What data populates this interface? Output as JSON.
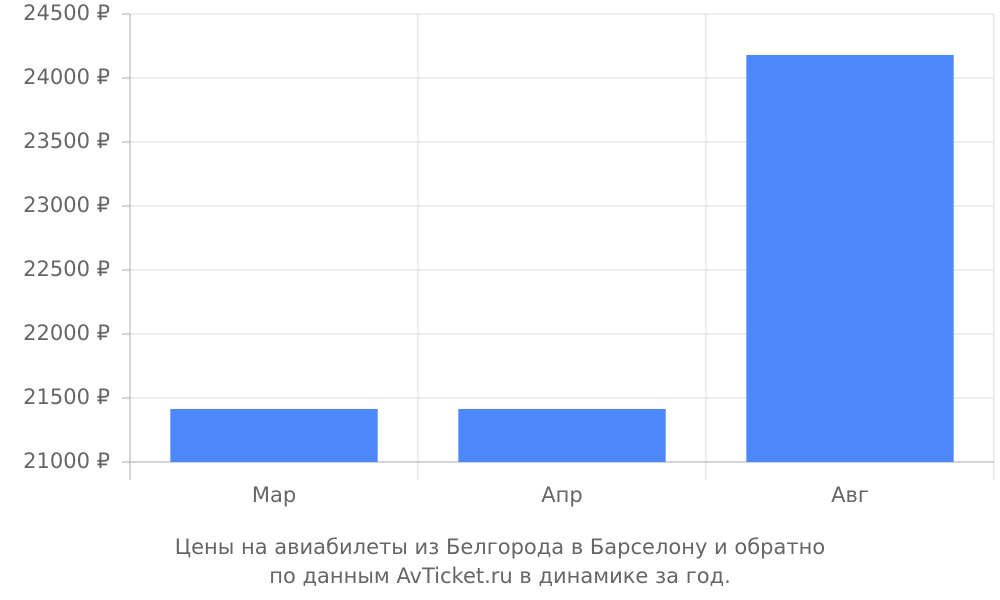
{
  "chart_data": {
    "type": "bar",
    "title": "Цены на авиабилеты из Белгорода в Барселону и обратно",
    "subtitle": "по данным AvTicket.ru в динамике за год.",
    "categories": [
      "Мар",
      "Апр",
      "Авг"
    ],
    "values": [
      21414,
      21414,
      24180
    ],
    "color": "#4a88fb",
    "ylim": [
      21000,
      24500
    ],
    "yticks": [
      {
        "value": 21000,
        "label": "21000 ₽"
      },
      {
        "value": 21500,
        "label": "21500 ₽"
      },
      {
        "value": 22000,
        "label": "22000 ₽"
      },
      {
        "value": 22500,
        "label": "22500 ₽"
      },
      {
        "value": 23000,
        "label": "23000 ₽"
      },
      {
        "value": 23500,
        "label": "23500 ₽"
      },
      {
        "value": 24000,
        "label": "24000 ₽"
      },
      {
        "value": 24500,
        "label": "24500 ₽"
      }
    ],
    "grid": true
  }
}
